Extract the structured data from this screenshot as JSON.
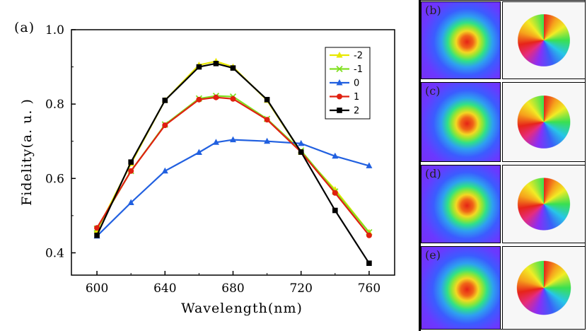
{
  "figure_label": "(a)",
  "chart_data": {
    "type": "line",
    "title": "",
    "xlabel": "Wavelength(nm)",
    "ylabel": "Fidelity(a. u. )",
    "xlim": [
      585,
      775
    ],
    "ylim": [
      0.34,
      1.0
    ],
    "xticks": [
      600,
      640,
      680,
      720,
      760
    ],
    "yticks": [
      0.4,
      0.6,
      0.8,
      1.0
    ],
    "xtick_labels": [
      "600",
      "640",
      "680",
      "720",
      "760"
    ],
    "ytick_labels": [
      "0.4",
      "0.6",
      "0.8",
      "1.0"
    ],
    "x": [
      600,
      620,
      640,
      660,
      670,
      680,
      700,
      720,
      740,
      760
    ],
    "legend_position": "top-right",
    "series": [
      {
        "name": "-2",
        "color": "#e8e800",
        "marker": "triangle",
        "values": [
          0.46,
          0.64,
          0.81,
          0.905,
          0.915,
          0.9,
          0.81,
          0.67,
          0.57,
          0.455
        ]
      },
      {
        "name": "-1",
        "color": "#80e020",
        "marker": "x",
        "values": [
          0.465,
          0.62,
          0.745,
          0.815,
          0.822,
          0.82,
          0.76,
          0.675,
          0.565,
          0.455
        ]
      },
      {
        "name": "0",
        "color": "#2160e0",
        "marker": "triangle",
        "values": [
          0.445,
          0.535,
          0.62,
          0.67,
          0.697,
          0.704,
          0.7,
          0.694,
          0.66,
          0.634
        ]
      },
      {
        "name": "1",
        "color": "#e02010",
        "marker": "circle",
        "values": [
          0.467,
          0.62,
          0.743,
          0.812,
          0.818,
          0.814,
          0.758,
          0.671,
          0.561,
          0.447
        ]
      },
      {
        "name": "2",
        "color": "#000000",
        "marker": "square",
        "values": [
          0.447,
          0.644,
          0.81,
          0.9,
          0.909,
          0.897,
          0.812,
          0.671,
          0.514,
          0.372
        ]
      }
    ]
  },
  "panels": [
    {
      "label": "(b)"
    },
    {
      "label": "(c)"
    },
    {
      "label": "(d)"
    },
    {
      "label": "(e)"
    }
  ]
}
